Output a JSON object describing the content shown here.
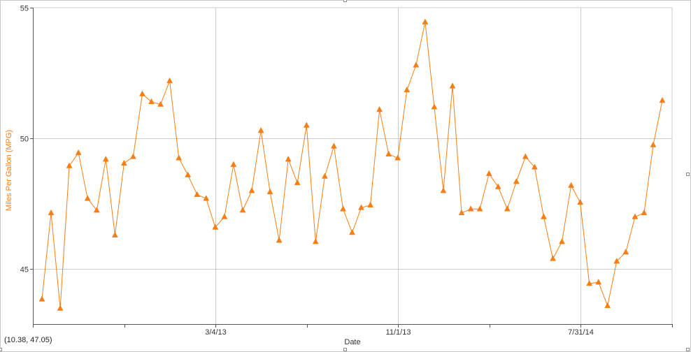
{
  "readout": "(10.38, 47.05)",
  "colors": {
    "series": "#f57f17",
    "grid": "#cccccc",
    "axis": "#555555",
    "ylabel": "#f57f17"
  },
  "chart_data": {
    "type": "line",
    "title": "",
    "xlabel": "Date",
    "ylabel": "Miles Per Gallon (MPG)",
    "ylim": [
      42.9,
      55
    ],
    "y_ticks": [
      45,
      50,
      55
    ],
    "x_tick_labels": [
      "3/4/13",
      "11/1/13",
      "7/31/14"
    ],
    "grid": true,
    "marker": "triangle",
    "series": [
      {
        "values": [
          43.85,
          47.15,
          43.5,
          48.95,
          49.45,
          47.7,
          47.25,
          49.2,
          46.3,
          49.05,
          49.3,
          51.7,
          51.4,
          51.3,
          52.2,
          49.25,
          48.6,
          47.85,
          47.7,
          46.6,
          47.0,
          49.0,
          47.25,
          48.0,
          50.3,
          47.95,
          46.1,
          49.2,
          48.3,
          50.5,
          46.05,
          48.55,
          49.7,
          47.3,
          46.4,
          47.35,
          47.45,
          51.1,
          49.4,
          49.25,
          51.85,
          52.8,
          54.45,
          51.2,
          48.0,
          52.0,
          47.15,
          47.3,
          47.3,
          48.65,
          48.15,
          47.3,
          48.35,
          49.3,
          48.9,
          47.0,
          45.4,
          46.05,
          48.2,
          47.55,
          44.45,
          44.5,
          43.6,
          45.3,
          45.65,
          47.0,
          47.15,
          49.75,
          51.45
        ]
      }
    ]
  }
}
